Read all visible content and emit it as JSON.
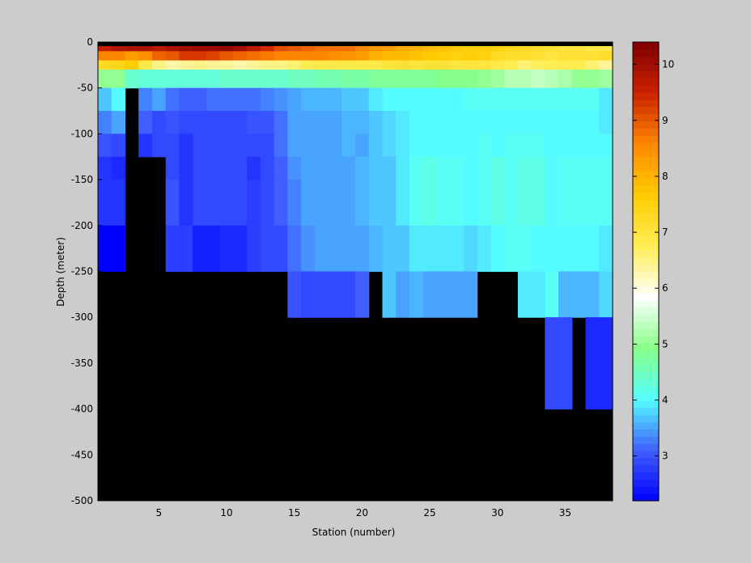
{
  "chart_data": {
    "type": "heatmap",
    "xlabel": "Station (number)",
    "ylabel": "Depth (meter)",
    "xlim": [
      1,
      38
    ],
    "ylim": [
      -500,
      0
    ],
    "x_ticks": [
      5,
      10,
      15,
      20,
      25,
      30,
      35
    ],
    "y_ticks": [
      0,
      -50,
      -100,
      -150,
      -200,
      -250,
      -300,
      -350,
      -400,
      -450,
      -500
    ],
    "colorbar": {
      "range": [
        2.2,
        10.4
      ],
      "ticks": [
        3,
        4,
        5,
        6,
        7,
        8,
        9,
        10
      ],
      "colormap": [
        "#0000ff",
        "#4060ff",
        "#55ffff",
        "#88ff88",
        "#ffffff",
        "#ffee55",
        "#ffcc00",
        "#ff8800",
        "#cc2200",
        "#800000"
      ]
    },
    "no_data_color": "#000000",
    "stations": [
      1,
      38
    ],
    "depth_bins": [
      0,
      -10,
      -20,
      -30,
      -50,
      -75,
      -100,
      -125,
      -150,
      -200,
      -250,
      -300,
      -400,
      -500
    ],
    "station_depths": [
      250,
      250,
      50,
      150,
      150,
      250,
      250,
      250,
      250,
      250,
      250,
      250,
      250,
      250,
      300,
      300,
      300,
      300,
      300,
      250,
      300,
      300,
      300,
      300,
      300,
      300,
      300,
      250,
      250,
      250,
      300,
      300,
      300,
      400,
      400,
      300,
      400,
      400
    ],
    "temperature_grid": {
      "note_rows": "rows correspond to depth bins (surface to -300/-400 m), columns to stations 1..38",
      "rows": [
        [
          9.6,
          9.8,
          9.9,
          9.9,
          9.7,
          9.9,
          10.0,
          10.1,
          10.1,
          10.2,
          10.0,
          9.7,
          9.4,
          9.1,
          9.0,
          8.9,
          8.8,
          8.8,
          8.8,
          8.6,
          8.4,
          8.3,
          8.1,
          8.0,
          7.9,
          7.8,
          7.7,
          7.6,
          7.6,
          7.5,
          7.4,
          7.3,
          7.2,
          7.1,
          7.0,
          7.0,
          6.9,
          6.9
        ],
        [
          8.6,
          8.6,
          8.3,
          8.5,
          8.9,
          9.0,
          9.3,
          9.3,
          9.2,
          9.0,
          8.9,
          8.8,
          8.7,
          8.6,
          8.6,
          8.6,
          8.6,
          8.5,
          8.4,
          8.3,
          8.0,
          7.9,
          7.9,
          7.8,
          7.7,
          7.6,
          7.5,
          7.6,
          7.5,
          7.3,
          7.2,
          7.2,
          7.1,
          7.0,
          7.1,
          7.1,
          7.1,
          7.2
        ],
        [
          7.3,
          7.4,
          7.6,
          6.9,
          6.5,
          6.3,
          6.4,
          6.5,
          6.4,
          6.4,
          6.3,
          6.4,
          6.5,
          6.5,
          6.6,
          6.8,
          6.9,
          6.9,
          6.9,
          6.9,
          6.9,
          7.0,
          7.1,
          7.0,
          7.1,
          7.1,
          7.0,
          7.0,
          7.0,
          6.9,
          6.8,
          6.6,
          6.7,
          6.8,
          6.8,
          6.8,
          6.6,
          6.4
        ],
        [
          5.0,
          5.0,
          4.4,
          4.3,
          4.3,
          4.3,
          4.3,
          4.3,
          4.3,
          4.4,
          4.4,
          4.4,
          4.4,
          4.4,
          4.5,
          4.5,
          4.6,
          4.6,
          4.7,
          4.7,
          4.8,
          4.8,
          4.8,
          4.8,
          4.8,
          4.9,
          4.9,
          4.9,
          5.0,
          5.1,
          5.3,
          5.3,
          5.4,
          5.3,
          5.2,
          5.0,
          5.0,
          5.1
        ],
        [
          3.7,
          4.0,
          null,
          3.3,
          3.5,
          3.2,
          3.1,
          3.1,
          3.2,
          3.2,
          3.2,
          3.2,
          3.3,
          3.4,
          3.5,
          3.6,
          3.6,
          3.6,
          3.7,
          3.7,
          3.9,
          4.0,
          4.0,
          4.0,
          4.0,
          4.0,
          4.0,
          4.1,
          4.1,
          4.1,
          4.1,
          4.1,
          4.1,
          4.1,
          4.1,
          4.1,
          4.1,
          3.9
        ],
        [
          3.3,
          3.5,
          null,
          3.1,
          2.9,
          3.0,
          2.9,
          2.9,
          2.9,
          2.9,
          2.9,
          3.0,
          3.0,
          3.2,
          3.5,
          3.5,
          3.5,
          3.5,
          3.6,
          3.6,
          3.7,
          3.8,
          3.9,
          4.0,
          4.0,
          4.0,
          4.0,
          4.0,
          4.0,
          4.0,
          4.0,
          4.0,
          4.0,
          4.0,
          4.0,
          4.0,
          4.0,
          3.9
        ],
        [
          3.0,
          2.9,
          null,
          2.7,
          2.9,
          2.9,
          2.7,
          2.9,
          2.9,
          2.9,
          2.9,
          2.9,
          2.9,
          3.2,
          3.5,
          3.5,
          3.5,
          3.5,
          3.6,
          3.5,
          3.7,
          3.8,
          3.9,
          4.0,
          4.0,
          4.0,
          4.0,
          4.0,
          4.1,
          4.0,
          4.1,
          4.1,
          4.1,
          4.0,
          4.0,
          4.0,
          4.0,
          4.0
        ],
        [
          2.7,
          2.6,
          null,
          null,
          null,
          2.9,
          2.7,
          2.9,
          2.9,
          2.9,
          2.9,
          2.7,
          2.9,
          3.1,
          3.4,
          3.5,
          3.5,
          3.5,
          3.5,
          3.6,
          3.7,
          3.7,
          3.9,
          4.1,
          4.2,
          4.1,
          4.1,
          4.0,
          4.1,
          4.2,
          4.1,
          4.2,
          4.2,
          4.0,
          4.1,
          4.1,
          4.1,
          4.1
        ],
        [
          2.7,
          2.7,
          null,
          null,
          null,
          3.0,
          2.7,
          2.9,
          2.9,
          2.9,
          2.9,
          2.8,
          2.9,
          3.1,
          3.3,
          3.5,
          3.5,
          3.5,
          3.5,
          3.6,
          3.7,
          3.7,
          3.9,
          4.1,
          4.2,
          4.1,
          4.1,
          4.0,
          4.1,
          4.2,
          4.1,
          4.2,
          4.2,
          4.0,
          4.1,
          4.1,
          4.1,
          4.1
        ],
        [
          2.2,
          2.2,
          null,
          null,
          null,
          2.8,
          2.8,
          2.5,
          2.5,
          2.6,
          2.6,
          2.8,
          2.9,
          2.9,
          3.2,
          3.4,
          3.5,
          3.5,
          3.5,
          3.5,
          3.6,
          3.7,
          3.7,
          3.9,
          3.9,
          3.9,
          3.9,
          3.8,
          3.9,
          4.0,
          4.1,
          4.1,
          4.0,
          4.0,
          4.0,
          4.0,
          4.0,
          3.9
        ],
        [
          null,
          null,
          null,
          null,
          null,
          null,
          null,
          null,
          null,
          null,
          null,
          null,
          null,
          null,
          3.0,
          2.9,
          2.9,
          2.9,
          2.9,
          3.1,
          null,
          3.7,
          3.5,
          3.6,
          3.5,
          3.5,
          3.5,
          3.5,
          null,
          null,
          null,
          3.9,
          3.9,
          4.1,
          3.6,
          3.6,
          3.6,
          3.8
        ],
        [
          null,
          null,
          null,
          null,
          null,
          null,
          null,
          null,
          null,
          null,
          null,
          null,
          null,
          null,
          null,
          null,
          null,
          null,
          null,
          null,
          null,
          null,
          null,
          null,
          null,
          null,
          null,
          null,
          null,
          null,
          null,
          null,
          null,
          2.9,
          2.9,
          null,
          2.6,
          2.6
        ],
        [
          null,
          null,
          null,
          null,
          null,
          null,
          null,
          null,
          null,
          null,
          null,
          null,
          null,
          null,
          null,
          null,
          null,
          null,
          null,
          null,
          null,
          null,
          null,
          null,
          null,
          null,
          null,
          null,
          null,
          null,
          null,
          null,
          null,
          null,
          null,
          null,
          null,
          null
        ]
      ]
    }
  }
}
